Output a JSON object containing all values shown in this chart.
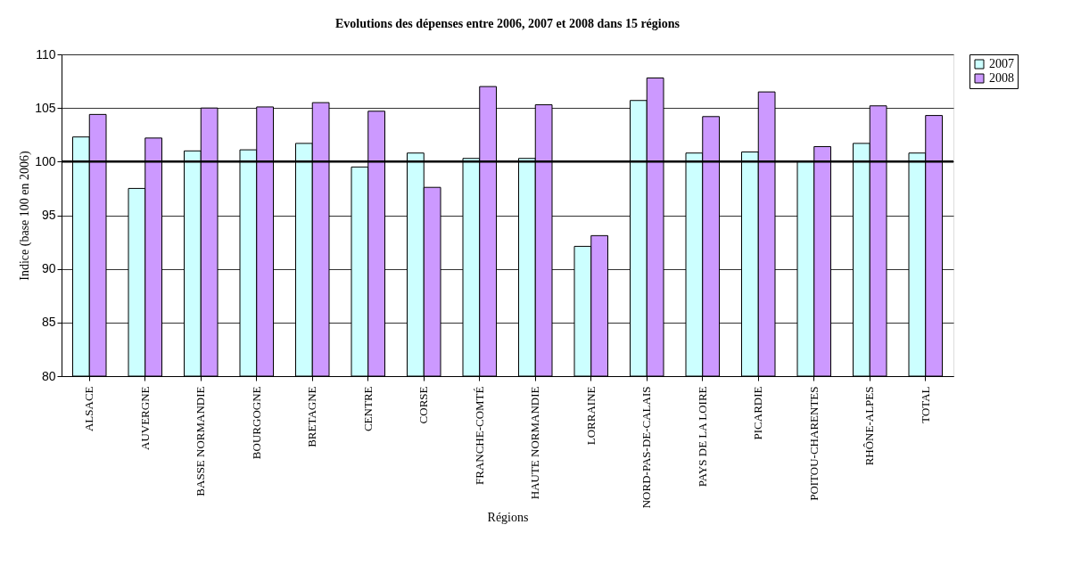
{
  "chart_data": {
    "type": "bar",
    "title": "Evolutions des dépenses entre 2006, 2007 et 2008 dans 15 régions",
    "xlabel": "Régions",
    "ylabel": "Indice (base 100 en 2006)",
    "categories": [
      "ALSACE",
      "AUVERGNE",
      "BASSE NORMANDIE",
      "BOURGOGNE",
      "BRETAGNE",
      "CENTRE",
      "CORSE",
      "FRANCHE-COMTÉ",
      "HAUTE NORMANDIE",
      "LORRAINE",
      "NORD-PAS-DE-CALAIS",
      "PAYS DE LA LOIRE",
      "PICARDIE",
      "POITOU-CHARENTES",
      "RHÔNE-ALPES",
      "TOTAL"
    ],
    "series": [
      {
        "name": "2007",
        "color": "#ccffff",
        "values": [
          102.3,
          97.5,
          101.0,
          101.1,
          101.7,
          99.5,
          100.8,
          100.3,
          100.3,
          92.1,
          105.7,
          100.8,
          100.9,
          100.0,
          101.7,
          100.8
        ]
      },
      {
        "name": "2008",
        "color": "#cc99ff",
        "values": [
          104.4,
          102.2,
          105.0,
          105.1,
          105.5,
          104.7,
          97.6,
          107.0,
          105.3,
          93.1,
          107.8,
          104.2,
          106.5,
          101.4,
          105.2,
          104.3
        ]
      }
    ],
    "ylim": [
      80,
      110
    ],
    "yticks": [
      80,
      85,
      90,
      95,
      100,
      105,
      110
    ],
    "grid": "y",
    "legend": "right",
    "ref_lines": [
      {
        "axis": "y",
        "value": 100,
        "color": "#000000"
      }
    ]
  }
}
